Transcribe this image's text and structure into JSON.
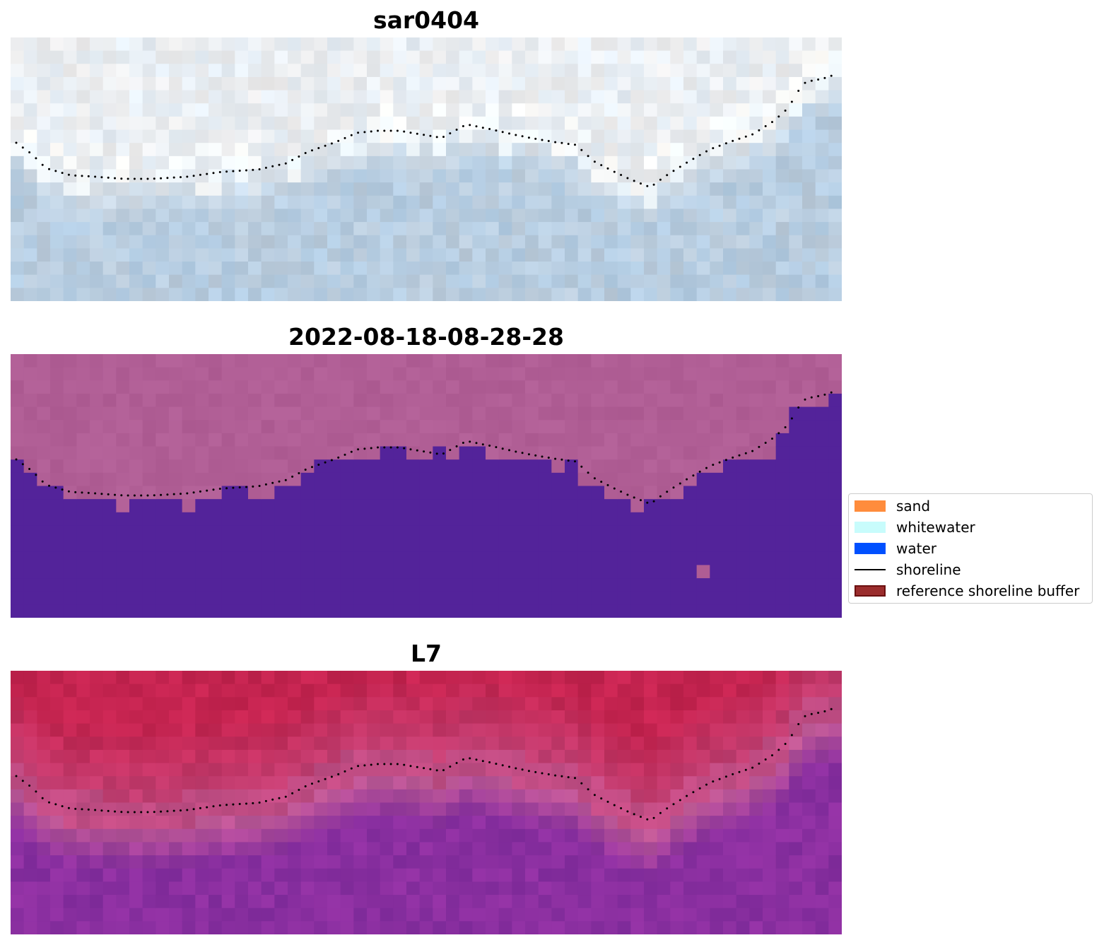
{
  "panels": [
    {
      "title": "sar0404",
      "style": "sar"
    },
    {
      "title": "2022-08-18-08-28-28",
      "style": "classified"
    },
    {
      "title": "L7",
      "style": "l7"
    }
  ],
  "legend": {
    "items": [
      {
        "label": "sand",
        "color": "#ff8c3c",
        "kind": "patch"
      },
      {
        "label": "whitewater",
        "color": "#c8fcfc",
        "kind": "patch"
      },
      {
        "label": "water",
        "color": "#0050ff",
        "kind": "patch"
      },
      {
        "label": "shoreline",
        "color": "#000000",
        "kind": "line"
      },
      {
        "label": "reference shoreline buffer",
        "color": "#9b2d2d",
        "kind": "patch",
        "edge": "#6b1010"
      }
    ]
  },
  "colors": {
    "sar_land": "#eaeef2",
    "sar_water": "#b8cde0",
    "classified_land": "#b05e95",
    "classified_water": "#53239a",
    "l7_land": "#c52450",
    "l7_mid": "#c05a95",
    "l7_water": "#8a2fa0",
    "shoreline_dots": "#000000"
  }
}
